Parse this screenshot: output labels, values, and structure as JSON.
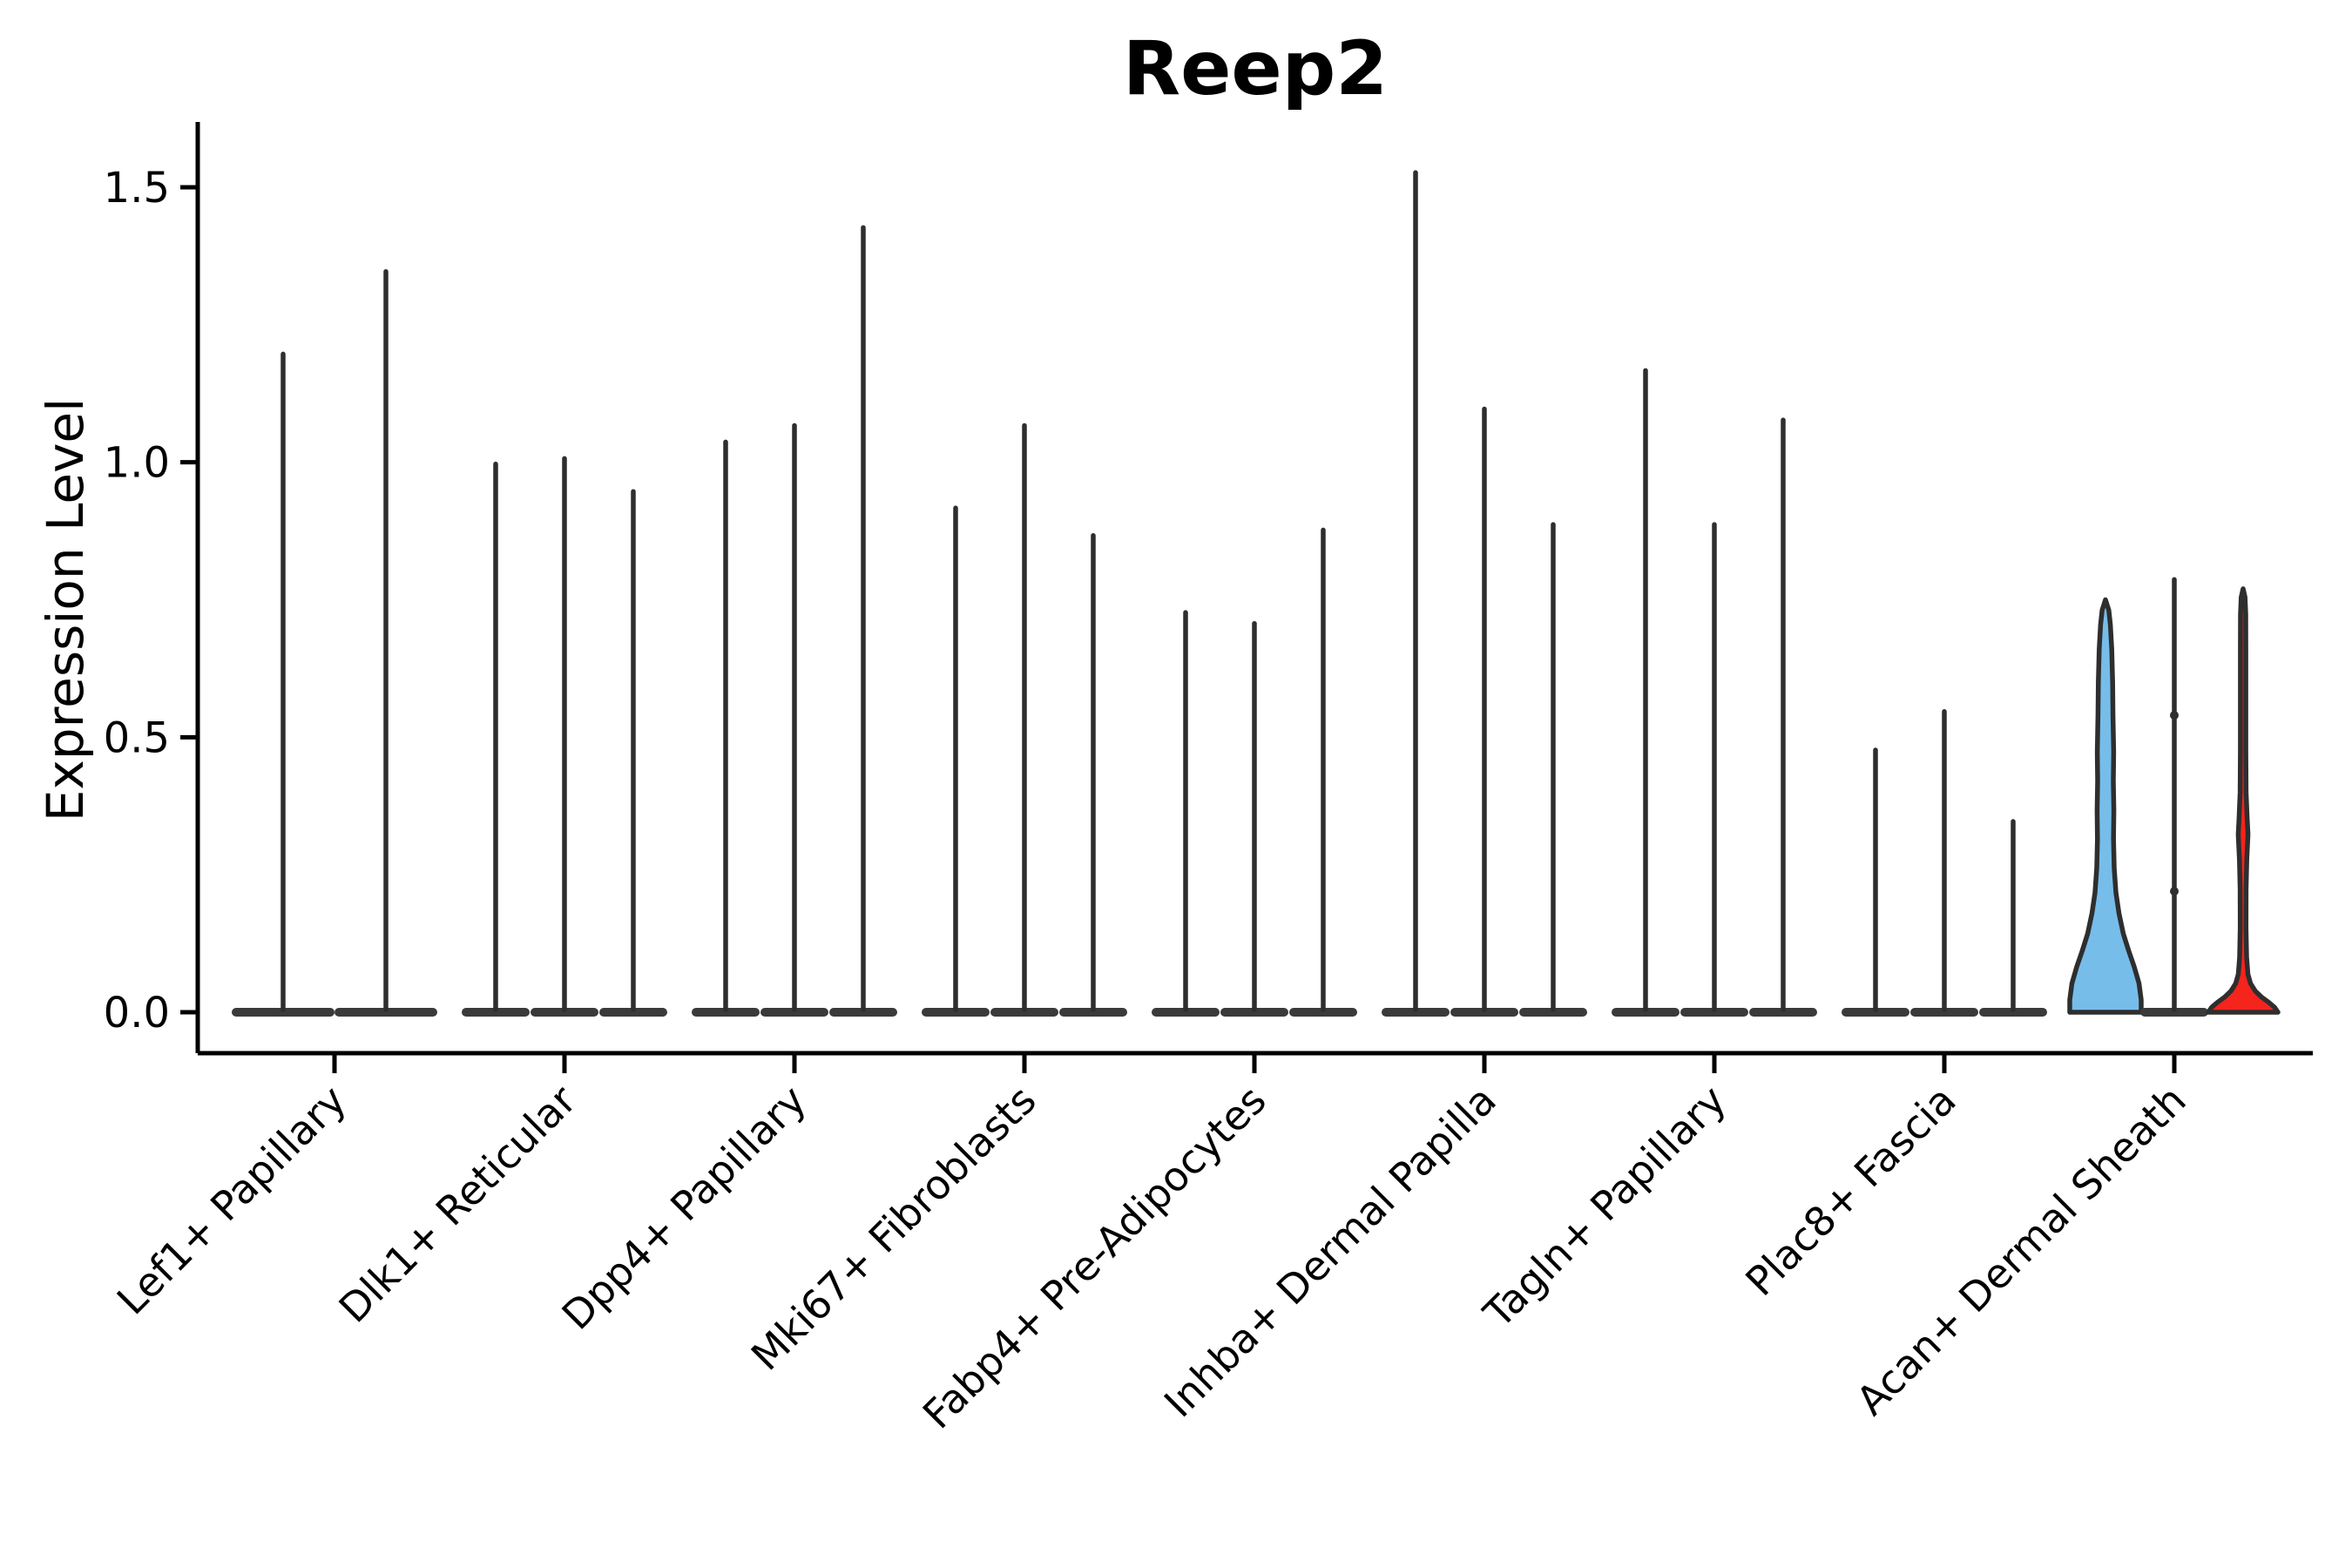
{
  "chart_data": {
    "type": "violin",
    "title": "Reep2",
    "ylabel": "Expression Level",
    "xlabel": "",
    "grid": false,
    "legend": "none",
    "ylim": [
      0,
      1.62
    ],
    "yticks": [
      {
        "value": 0.0,
        "label": "0.0"
      },
      {
        "value": 0.5,
        "label": "0.5"
      },
      {
        "value": 1.0,
        "label": "1.0"
      },
      {
        "value": 1.5,
        "label": "1.5"
      }
    ],
    "categories": [
      "Lef1+ Papillary",
      "Dlk1+ Reticular",
      "Dpp4+ Papillary",
      "Mki67+ Fibroblasts",
      "Fabp4+ Pre-Adipocytes",
      "Inhba+ Dermal Papilla",
      "Tagln+ Papillary",
      "Plac8+ Fascia",
      "Acan+ Dermal Sheath"
    ],
    "groups": [
      {
        "category": "Lef1+ Papillary",
        "violins": [
          {
            "max": 1.2,
            "kind": "needle"
          },
          {
            "max": 1.35,
            "kind": "needle"
          }
        ]
      },
      {
        "category": "Dlk1+ Reticular",
        "violins": [
          {
            "max": 1.0,
            "kind": "needle"
          },
          {
            "max": 1.01,
            "kind": "needle"
          },
          {
            "max": 0.95,
            "kind": "needle"
          }
        ]
      },
      {
        "category": "Dpp4+ Papillary",
        "violins": [
          {
            "max": 1.04,
            "kind": "needle"
          },
          {
            "max": 1.07,
            "kind": "needle"
          },
          {
            "max": 1.43,
            "kind": "needle"
          }
        ]
      },
      {
        "category": "Mki67+ Fibroblasts",
        "violins": [
          {
            "max": 0.92,
            "kind": "needle"
          },
          {
            "max": 1.07,
            "kind": "needle"
          },
          {
            "max": 0.87,
            "kind": "needle"
          }
        ]
      },
      {
        "category": "Fabp4+ Pre-Adipocytes",
        "violins": [
          {
            "max": 0.73,
            "kind": "needle"
          },
          {
            "max": 0.71,
            "kind": "needle"
          },
          {
            "max": 0.88,
            "kind": "needle"
          }
        ]
      },
      {
        "category": "Inhba+ Dermal Papilla",
        "violins": [
          {
            "max": 1.53,
            "kind": "needle"
          },
          {
            "max": 1.1,
            "kind": "needle"
          },
          {
            "max": 0.89,
            "kind": "needle"
          }
        ]
      },
      {
        "category": "Tagln+ Papillary",
        "violins": [
          {
            "max": 1.17,
            "kind": "needle"
          },
          {
            "max": 0.89,
            "kind": "needle"
          },
          {
            "max": 1.08,
            "kind": "needle"
          }
        ]
      },
      {
        "category": "Plac8+ Fascia",
        "violins": [
          {
            "max": 0.48,
            "kind": "needle"
          },
          {
            "max": 0.55,
            "kind": "needle"
          },
          {
            "max": 0.35,
            "kind": "needle"
          }
        ]
      },
      {
        "category": "Acan+ Dermal Sheath",
        "violins": [
          {
            "max": 0.75,
            "kind": "bell",
            "fill": "#76BDEA"
          },
          {
            "max": 0.79,
            "kind": "needle",
            "dots": [
              0.54,
              0.22
            ]
          },
          {
            "max": 0.77,
            "kind": "flare",
            "fill": "#F5241D",
            "lens": 0.34
          }
        ]
      }
    ],
    "colors": {
      "outline": "#2E2E2E",
      "baseline_sliver": "#3A3A3A",
      "axis": "#000000",
      "highlight_blue": "#76BDEA",
      "highlight_red": "#F5241D",
      "text": "#000000",
      "background": "#FFFFFF"
    }
  }
}
